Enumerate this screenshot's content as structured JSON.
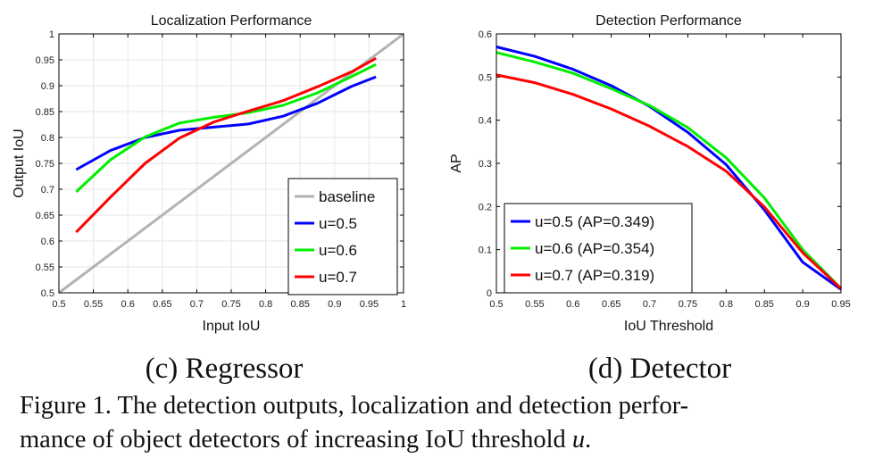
{
  "chart_data": [
    {
      "type": "line",
      "title": "Localization Performance",
      "xlabel": "Input IoU",
      "ylabel": "Output IoU",
      "xlim": [
        0.5,
        1
      ],
      "ylim": [
        0.5,
        1
      ],
      "xticks": [
        0.5,
        0.55,
        0.6,
        0.65,
        0.7,
        0.75,
        0.8,
        0.85,
        0.9,
        0.95,
        1
      ],
      "yticks": [
        0.5,
        0.55,
        0.6,
        0.65,
        0.7,
        0.75,
        0.8,
        0.85,
        0.9,
        0.95,
        1
      ],
      "xtick_labels": [
        "0.5",
        "0.55",
        "0.6",
        "0.65",
        "0.7",
        "0.75",
        "0.8",
        "0.85",
        "0.9",
        "0.95",
        "1"
      ],
      "ytick_labels": [
        "0.5",
        "0.55",
        "0.6",
        "0.65",
        "0.7",
        "0.75",
        "0.8",
        "0.85",
        "0.9",
        "0.95",
        "1"
      ],
      "grid": true,
      "legend_position": "bottom-right",
      "series": [
        {
          "name": "baseline",
          "color": "#b3b3b3",
          "x": [
            0.5,
            1.0
          ],
          "y": [
            0.5,
            1.0
          ]
        },
        {
          "name": "u=0.5",
          "color": "#0000ff",
          "x": [
            0.525,
            0.575,
            0.625,
            0.675,
            0.725,
            0.775,
            0.825,
            0.875,
            0.925,
            0.96
          ],
          "y": [
            0.738,
            0.775,
            0.8,
            0.814,
            0.82,
            0.826,
            0.841,
            0.866,
            0.899,
            0.917
          ]
        },
        {
          "name": "u=0.6",
          "color": "#00ee00",
          "x": [
            0.525,
            0.575,
            0.625,
            0.675,
            0.725,
            0.775,
            0.825,
            0.875,
            0.925,
            0.96
          ],
          "y": [
            0.695,
            0.757,
            0.801,
            0.828,
            0.839,
            0.848,
            0.862,
            0.886,
            0.918,
            0.941
          ]
        },
        {
          "name": "u=0.7",
          "color": "#ff0000",
          "x": [
            0.525,
            0.575,
            0.625,
            0.675,
            0.725,
            0.775,
            0.825,
            0.875,
            0.925,
            0.96
          ],
          "y": [
            0.617,
            0.685,
            0.75,
            0.799,
            0.83,
            0.851,
            0.871,
            0.898,
            0.927,
            0.953
          ]
        }
      ]
    },
    {
      "type": "line",
      "title": "Detection Performance",
      "xlabel": "IoU Threshold",
      "ylabel": "AP",
      "xlim": [
        0.5,
        0.95
      ],
      "ylim": [
        0,
        0.6
      ],
      "xticks": [
        0.5,
        0.55,
        0.6,
        0.65,
        0.7,
        0.75,
        0.8,
        0.85,
        0.9,
        0.95
      ],
      "yticks": [
        0,
        0.1,
        0.2,
        0.3,
        0.4,
        0.5,
        0.6
      ],
      "xtick_labels": [
        "0.5",
        "0.55",
        "0.6",
        "0.65",
        "0.7",
        "0.75",
        "0.8",
        "0.85",
        "0.9",
        "0.95"
      ],
      "ytick_labels": [
        "0",
        "0.1",
        "0.2",
        "0.3",
        "0.4",
        "0.5",
        "0.6"
      ],
      "grid": false,
      "legend_position": "bottom-left",
      "series": [
        {
          "name": "u=0.5 (AP=0.349)",
          "color": "#0000ff",
          "x": [
            0.5,
            0.55,
            0.6,
            0.65,
            0.7,
            0.75,
            0.8,
            0.85,
            0.9,
            0.95
          ],
          "y": [
            0.57,
            0.548,
            0.518,
            0.48,
            0.432,
            0.372,
            0.297,
            0.192,
            0.071,
            0.008
          ]
        },
        {
          "name": "u=0.6 (AP=0.354)",
          "color": "#00ee00",
          "x": [
            0.5,
            0.55,
            0.6,
            0.65,
            0.7,
            0.75,
            0.8,
            0.85,
            0.9,
            0.95
          ],
          "y": [
            0.557,
            0.535,
            0.509,
            0.473,
            0.434,
            0.383,
            0.313,
            0.22,
            0.1,
            0.01
          ]
        },
        {
          "name": "u=0.7 (AP=0.319)",
          "color": "#ff0000",
          "x": [
            0.5,
            0.55,
            0.6,
            0.65,
            0.7,
            0.75,
            0.8,
            0.85,
            0.9,
            0.95
          ],
          "y": [
            0.505,
            0.487,
            0.46,
            0.426,
            0.386,
            0.339,
            0.282,
            0.199,
            0.093,
            0.01
          ]
        }
      ]
    }
  ],
  "subcaptions": [
    "(c) Regressor",
    "(d) Detector"
  ],
  "caption": {
    "line1": "Figure 1. The detection outputs, localization and detection perfor-",
    "line2_text": "mance of object detectors of increasing IoU threshold ",
    "line2_var": "u",
    "line2_end": "."
  }
}
